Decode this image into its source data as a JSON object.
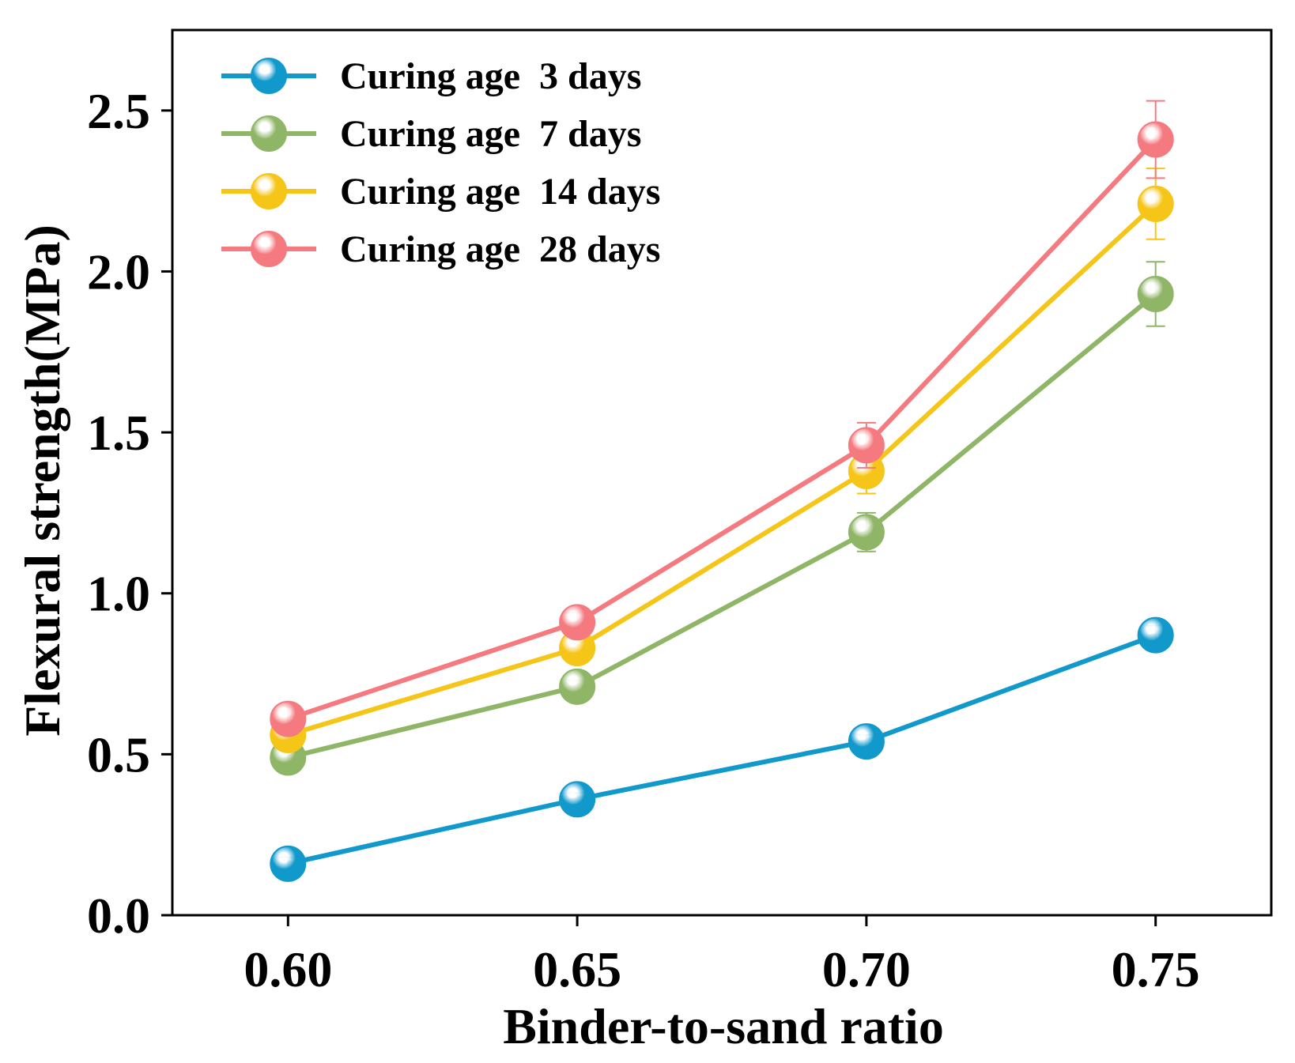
{
  "chart_data": {
    "type": "line",
    "title": "",
    "xlabel": "Binder-to-sand ratio",
    "ylabel": "Flexural strength(MPa)",
    "x": [
      0.6,
      0.65,
      0.7,
      0.75
    ],
    "x_tick_labels": [
      "0.60",
      "0.65",
      "0.70",
      "0.75"
    ],
    "y_ticks": [
      0.0,
      0.5,
      1.0,
      1.5,
      2.0,
      2.5
    ],
    "y_tick_labels": [
      "0.0",
      "0.5",
      "1.0",
      "1.5",
      "2.0",
      "2.5"
    ],
    "xlim": [
      0.58,
      0.77
    ],
    "ylim": [
      0.0,
      2.75
    ],
    "grid": false,
    "legend_position": "top-left",
    "series": [
      {
        "name": "Curing age  3 days",
        "color": "#1199cc",
        "values": [
          0.16,
          0.36,
          0.54,
          0.87
        ],
        "errors": [
          0.02,
          0.02,
          0.02,
          0.03
        ]
      },
      {
        "name": "Curing age  7 days",
        "color": "#8fb567",
        "values": [
          0.49,
          0.71,
          1.19,
          1.93
        ],
        "errors": [
          0.03,
          0.02,
          0.06,
          0.1
        ]
      },
      {
        "name": "Curing age  14 days",
        "color": "#f5c518",
        "values": [
          0.56,
          0.83,
          1.38,
          2.21
        ],
        "errors": [
          0.03,
          0.04,
          0.07,
          0.11
        ]
      },
      {
        "name": "Curing age  28 days",
        "color": "#f47a80",
        "values": [
          0.61,
          0.91,
          1.46,
          2.41
        ],
        "errors": [
          0.04,
          0.03,
          0.07,
          0.12
        ]
      }
    ]
  }
}
